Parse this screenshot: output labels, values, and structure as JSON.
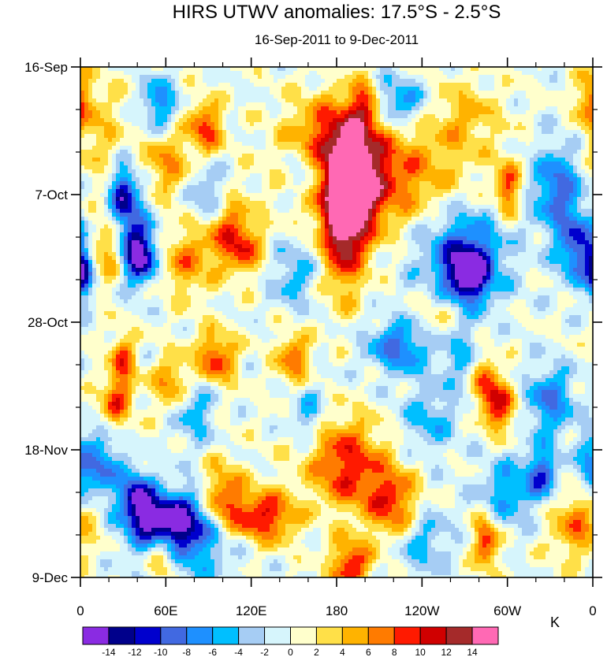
{
  "chart_data": {
    "type": "heatmap",
    "title": "HIRS UTWV anomalies: 17.5°S - 2.5°S",
    "subtitle": "16-Sep-2011 to 9-Dec-2011",
    "x_ticks": [
      "0",
      "60E",
      "120E",
      "180",
      "120W",
      "60W",
      "0"
    ],
    "x_values": [
      0,
      60,
      120,
      180,
      240,
      300,
      360
    ],
    "xlim": [
      0,
      360
    ],
    "y_ticks": [
      "16-Sep",
      "7-Oct",
      "28-Oct",
      "18-Nov",
      "9-Dec"
    ],
    "y_values": [
      0,
      21,
      42,
      63,
      84
    ],
    "ylim": [
      0,
      84
    ],
    "colorbar": {
      "unit": "K",
      "levels": [
        -14,
        -12,
        -10,
        -8,
        -6,
        -4,
        -2,
        0,
        2,
        4,
        6,
        8,
        10,
        12,
        14
      ],
      "labels": [
        "-14",
        "-12",
        "-10",
        "-8",
        "-6",
        "-4",
        "-2",
        "0",
        "2",
        "4",
        "6",
        "8",
        "10",
        "12",
        "14"
      ],
      "colors": [
        "#8a2be2",
        "#00008b",
        "#0000cd",
        "#4169e1",
        "#1e90ff",
        "#00bfff",
        "#a6cdf4",
        "#d6f5fc",
        "#ffffcc",
        "#ffe048",
        "#ffb300",
        "#ff7b00",
        "#ff1a00",
        "#d00000",
        "#a52a2a",
        "#ff69b4"
      ]
    },
    "anomaly_centers": [
      {
        "lon": 190,
        "day": 20,
        "value": 14,
        "sx": 14,
        "sy": 6
      },
      {
        "lon": 185,
        "day": 28,
        "value": 10,
        "sx": 10,
        "sy": 7
      },
      {
        "lon": 210,
        "day": 18,
        "value": 8,
        "sx": 40,
        "sy": 6
      },
      {
        "lon": 180,
        "day": 10,
        "value": 7,
        "sx": 22,
        "sy": 4
      },
      {
        "lon": 200,
        "day": 6,
        "value": 9,
        "sx": 8,
        "sy": 3
      },
      {
        "lon": 88,
        "day": 10,
        "value": 9,
        "sx": 8,
        "sy": 3
      },
      {
        "lon": 100,
        "day": 26,
        "value": 8,
        "sx": 12,
        "sy": 4
      },
      {
        "lon": 115,
        "day": 30,
        "value": 7,
        "sx": 10,
        "sy": 3
      },
      {
        "lon": 60,
        "day": 16,
        "value": 6,
        "sx": 12,
        "sy": 4
      },
      {
        "lon": 20,
        "day": 30,
        "value": 7,
        "sx": 8,
        "sy": 4
      },
      {
        "lon": 95,
        "day": 48,
        "value": 9,
        "sx": 10,
        "sy": 3
      },
      {
        "lon": 150,
        "day": 48,
        "value": 8,
        "sx": 8,
        "sy": 3
      },
      {
        "lon": 30,
        "day": 48,
        "value": 8,
        "sx": 6,
        "sy": 3
      },
      {
        "lon": 25,
        "day": 55,
        "value": 8,
        "sx": 8,
        "sy": 3
      },
      {
        "lon": 65,
        "day": 52,
        "value": 7,
        "sx": 10,
        "sy": 3
      },
      {
        "lon": 128,
        "day": 74,
        "value": 11,
        "sx": 16,
        "sy": 3
      },
      {
        "lon": 100,
        "day": 71,
        "value": 9,
        "sx": 10,
        "sy": 4
      },
      {
        "lon": 220,
        "day": 72,
        "value": 9,
        "sx": 12,
        "sy": 4
      },
      {
        "lon": 190,
        "day": 68,
        "value": 7,
        "sx": 18,
        "sy": 4
      },
      {
        "lon": 180,
        "day": 62,
        "value": 6,
        "sx": 22,
        "sy": 4
      },
      {
        "lon": 190,
        "day": 82,
        "value": 10,
        "sx": 10,
        "sy": 3
      },
      {
        "lon": 58,
        "day": 80,
        "value": 9,
        "sx": 8,
        "sy": 3
      },
      {
        "lon": 285,
        "day": 78,
        "value": 10,
        "sx": 6,
        "sy": 3
      },
      {
        "lon": 295,
        "day": 56,
        "value": 9,
        "sx": 8,
        "sy": 3
      },
      {
        "lon": 285,
        "day": 52,
        "value": 8,
        "sx": 6,
        "sy": 3
      },
      {
        "lon": 300,
        "day": 20,
        "value": 9,
        "sx": 6,
        "sy": 3
      },
      {
        "lon": 350,
        "day": 75,
        "value": 7,
        "sx": 14,
        "sy": 4
      },
      {
        "lon": 358,
        "day": 5,
        "value": 6,
        "sx": 6,
        "sy": 3
      },
      {
        "lon": 75,
        "day": 32,
        "value": 6,
        "sx": 12,
        "sy": 4
      },
      {
        "lon": 255,
        "day": 42,
        "value": 5,
        "sx": 14,
        "sy": 4
      },
      {
        "lon": 10,
        "day": 10,
        "value": 4,
        "sx": 14,
        "sy": 6
      },
      {
        "lon": 270,
        "day": 8,
        "value": 4,
        "sx": 18,
        "sy": 4
      },
      {
        "lon": 273,
        "day": 34,
        "value": -14,
        "sx": 10,
        "sy": 3
      },
      {
        "lon": 268,
        "day": 31,
        "value": -9,
        "sx": 22,
        "sy": 6
      },
      {
        "lon": 350,
        "day": 30,
        "value": -10,
        "sx": 10,
        "sy": 4
      },
      {
        "lon": 335,
        "day": 20,
        "value": -9,
        "sx": 12,
        "sy": 5
      },
      {
        "lon": 42,
        "day": 31,
        "value": -13,
        "sx": 8,
        "sy": 3
      },
      {
        "lon": 35,
        "day": 26,
        "value": -7,
        "sx": 10,
        "sy": 6
      },
      {
        "lon": 30,
        "day": 21,
        "value": -9,
        "sx": 6,
        "sy": 3
      },
      {
        "lon": 55,
        "day": 6,
        "value": -8,
        "sx": 8,
        "sy": 3
      },
      {
        "lon": 90,
        "day": 22,
        "value": -7,
        "sx": 10,
        "sy": 4
      },
      {
        "lon": 220,
        "day": 6,
        "value": -8,
        "sx": 16,
        "sy": 3
      },
      {
        "lon": 158,
        "day": 18,
        "value": -5,
        "sx": 10,
        "sy": 3
      },
      {
        "lon": 225,
        "day": 46,
        "value": -9,
        "sx": 16,
        "sy": 3
      },
      {
        "lon": 265,
        "day": 46,
        "value": -6,
        "sx": 10,
        "sy": 4
      },
      {
        "lon": 330,
        "day": 55,
        "value": -8,
        "sx": 12,
        "sy": 4
      },
      {
        "lon": 245,
        "day": 58,
        "value": -5,
        "sx": 14,
        "sy": 4
      },
      {
        "lon": 160,
        "day": 58,
        "value": -6,
        "sx": 10,
        "sy": 4
      },
      {
        "lon": 80,
        "day": 56,
        "value": -6,
        "sx": 10,
        "sy": 4
      },
      {
        "lon": 60,
        "day": 75,
        "value": -13,
        "sx": 16,
        "sy": 3
      },
      {
        "lon": 75,
        "day": 77,
        "value": -8,
        "sx": 24,
        "sy": 5
      },
      {
        "lon": 40,
        "day": 71,
        "value": -12,
        "sx": 8,
        "sy": 3
      },
      {
        "lon": 15,
        "day": 66,
        "value": -8,
        "sx": 10,
        "sy": 4
      },
      {
        "lon": 2,
        "day": 34,
        "value": -12,
        "sx": 4,
        "sy": 3
      },
      {
        "lon": 240,
        "day": 78,
        "value": -5,
        "sx": 14,
        "sy": 4
      },
      {
        "lon": 325,
        "day": 67,
        "value": -9,
        "sx": 8,
        "sy": 3
      },
      {
        "lon": 300,
        "day": 70,
        "value": -6,
        "sx": 14,
        "sy": 4
      },
      {
        "lon": 358,
        "day": 66,
        "value": -6,
        "sx": 6,
        "sy": 4
      },
      {
        "lon": 150,
        "day": 34,
        "value": -5,
        "sx": 12,
        "sy": 4
      }
    ]
  }
}
